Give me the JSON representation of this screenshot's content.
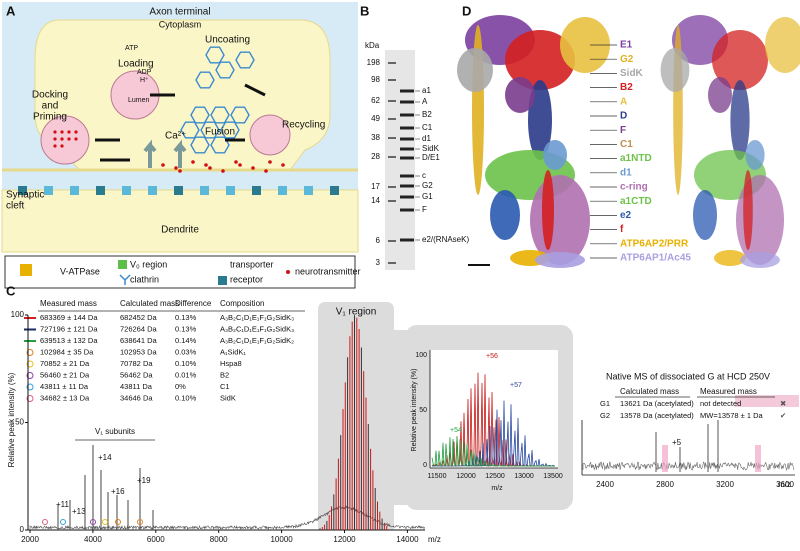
{
  "panel_a": {
    "letter": "A",
    "axon_terminal": "Axon terminal",
    "cytoplasm": "Cytoplasm",
    "loading": "Loading",
    "uncoating": "Uncoating",
    "docking_lines": [
      "Docking",
      "and",
      "Priming"
    ],
    "recycling": "Recycling",
    "fusion": "Fusion",
    "lumen": "Lumen",
    "atp": "ATP",
    "adp": "ADP",
    "proton": "H⁺",
    "calcium": "Ca²⁺",
    "cleft_lines": [
      "Synaptic",
      "cleft"
    ],
    "dendrite": "Dendrite",
    "legend": [
      "V-ATPase",
      "V₀ region",
      "clathrin",
      "transporter",
      "receptor",
      "neurotransmitter"
    ]
  },
  "panel_b": {
    "letter": "B",
    "unit": "kDa",
    "markers": [
      "198",
      "98",
      "62",
      "49",
      "38",
      "28",
      "17",
      "14",
      "6",
      "3"
    ],
    "bands": [
      "a1",
      "A",
      "B2",
      "C1",
      "d1",
      "SidK",
      "D/E1",
      "c",
      "G2",
      "G1",
      "F",
      "e2/(RNAseK)"
    ]
  },
  "panel_d": {
    "letter": "D",
    "labels": [
      {
        "name": "E1",
        "color": "#7b3fa0"
      },
      {
        "name": "G2",
        "color": "#e0b020"
      },
      {
        "name": "SidK",
        "color": "#a8a8a8"
      },
      {
        "name": "B2",
        "color": "#d42020"
      },
      {
        "name": "A",
        "color": "#e8c040"
      },
      {
        "name": "D",
        "color": "#2a3a8a"
      },
      {
        "name": "F",
        "color": "#7a3c8c"
      },
      {
        "name": "C1",
        "color": "#c09050"
      },
      {
        "name": "a1NTD",
        "color": "#6cc24a"
      },
      {
        "name": "d1",
        "color": "#6a9ad0"
      },
      {
        "name": "c-ring",
        "color": "#b070b0"
      },
      {
        "name": "a1CTD",
        "color": "#6cc24a"
      },
      {
        "name": "e2",
        "color": "#2a5ab0"
      },
      {
        "name": "f",
        "color": "#d42020"
      },
      {
        "name": "ATP6AP2/PRR",
        "color": "#e8b000"
      },
      {
        "name": "ATP6AP1/Ac45",
        "color": "#a8a0e0"
      }
    ]
  },
  "panel_c": {
    "letter": "C",
    "headers": [
      "Measured mass",
      "Calculated mass",
      "Difference",
      "Composition"
    ],
    "rows": [
      [
        "683369 ± 144 Da",
        "682452 Da",
        "0.13%",
        "A₃B₂C₁D₁E₁F₁G₂SidK₃"
      ],
      [
        "727196 ± 121 Da",
        "726264 Da",
        "0.13%",
        "A₃B₂C₁D₁E₁F₁G₂SidK₃"
      ],
      [
        "639513 ± 132 Da",
        "638641 Da",
        "0.14%",
        "A₃B₂C₁D₁E₁F₁G₂SidK₂"
      ],
      [
        "102984 ± 35 Da",
        "102953 Da",
        "0.03%",
        "A₁SidK₁"
      ],
      [
        "70852 ± 21 Da",
        "70782 Da",
        "0.10%",
        "Hspa8"
      ],
      [
        "56460 ± 21 Da",
        "56462 Da",
        "0.01%",
        "B2"
      ],
      [
        "43811 ± 11 Da",
        "43811 Da",
        "0%",
        "C1"
      ],
      [
        "34682 ± 13 Da",
        "34646 Da",
        "0.10%",
        "SidK"
      ]
    ],
    "row_colors": [
      "#d42020",
      "#1a2a6a",
      "#20a040",
      "#e08020",
      "#e0c020",
      "#9040b0",
      "#30a0e0",
      "#e06080"
    ],
    "y_label": "Relative peak intensity (%)",
    "y_ticks": [
      "0",
      "50",
      "100"
    ],
    "x_ticks": [
      "2000",
      "4000",
      "6000",
      "8000",
      "10000",
      "12000",
      "14000"
    ],
    "x_label": "m/z",
    "region": "V₁ region",
    "subunits": "V₁ subunits",
    "charges": [
      "+11",
      "+13",
      "+14",
      "+16",
      "+19"
    ],
    "inset": {
      "y_label": "Relative peak intensity (%)",
      "y_ticks": [
        "0",
        "50",
        "100"
      ],
      "x_ticks": [
        "11500",
        "12000",
        "12500",
        "13000",
        "13500"
      ],
      "x_label": "m/z",
      "charges": [
        "+56",
        "+57",
        "+54"
      ]
    },
    "native": {
      "title": "Native MS of dissociated G at HCD 250V",
      "headers": [
        "Calculated mass",
        "Measured mass"
      ],
      "rows": [
        [
          "G1",
          "13621 Da (acetylated)",
          "not detected",
          "✖"
        ],
        [
          "G2",
          "13578 Da (acetylated)",
          "MW=13578 ± 1 Da",
          "✔"
        ]
      ],
      "x_ticks": [
        "2400",
        "2800",
        "3200",
        "3600"
      ],
      "x_label": "m/z",
      "charge": "+5"
    }
  }
}
